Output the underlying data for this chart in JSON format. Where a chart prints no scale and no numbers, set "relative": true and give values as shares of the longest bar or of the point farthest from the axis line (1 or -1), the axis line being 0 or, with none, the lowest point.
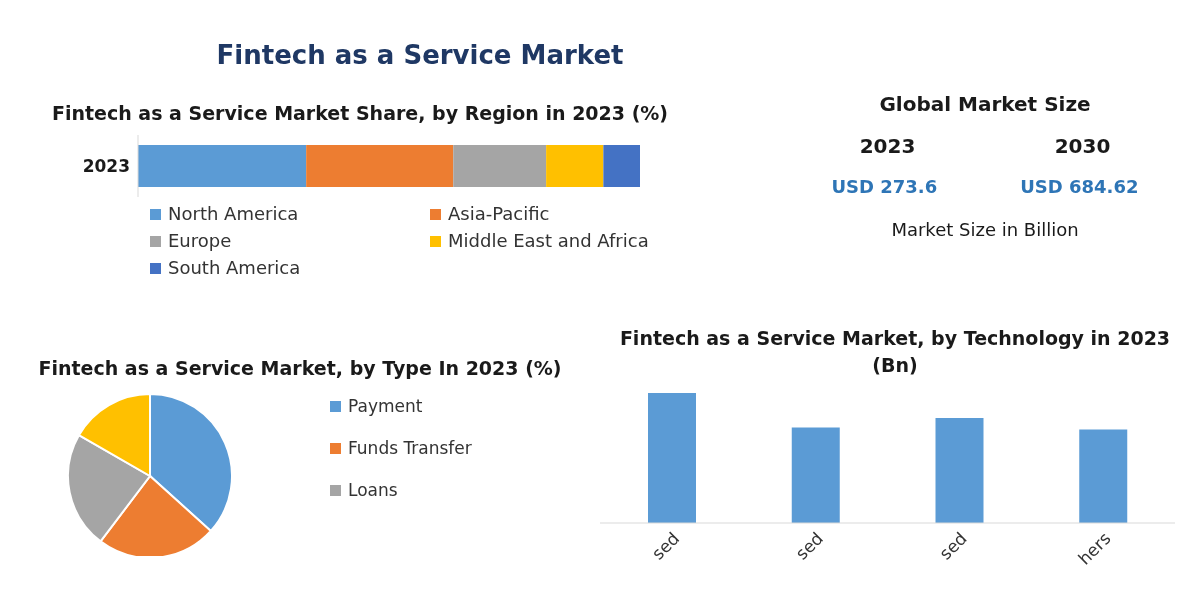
{
  "chart_data": [
    {
      "type": "other",
      "title": "Fintech as a Service Market"
    },
    {
      "type": "bar",
      "orientation": "horizontal",
      "stacked": true,
      "relative": true,
      "title": "Fintech as a Service Market Share, by Region in 2023 (%)",
      "categories": [
        "2023"
      ],
      "legend": "bottom",
      "series": [
        {
          "name": "North America",
          "color": "#5b9bd5",
          "values": [
            0.335
          ]
        },
        {
          "name": "Asia-Pacific",
          "color": "#ed7d31",
          "values": [
            0.293
          ]
        },
        {
          "name": "Europe",
          "color": "#a5a5a5",
          "values": [
            0.185
          ]
        },
        {
          "name": "Middle East and Africa",
          "color": "#ffc000",
          "values": [
            0.114
          ]
        },
        {
          "name": "South America",
          "color": "#4472c4",
          "values": [
            0.073
          ]
        }
      ]
    },
    {
      "type": "other",
      "title": "Global Market Size",
      "annotations": [
        "2023",
        "2030",
        "USD 273.6",
        "USD 684.62",
        "Market Size in Billion"
      ]
    },
    {
      "type": "pie",
      "title": "Fintech as a Service Market, by Type In 2023 (%)",
      "legend": "right",
      "categories": [
        "Payment",
        "Funds Transfer",
        "Loans",
        null
      ],
      "values": [
        36.7,
        23.6,
        23.0,
        16.7
      ],
      "colors": [
        "#5b9bd5",
        "#ed7d31",
        "#a5a5a5",
        "#ffc000"
      ]
    },
    {
      "type": "bar",
      "relative": true,
      "title": "Fintech as a Service Market, by Technology in 2023 (Bn)",
      "categories": [
        "sed",
        "sed",
        "sed",
        "hers"
      ],
      "values": [
        1,
        0.734,
        0.808,
        0.72
      ],
      "color": "#5b9bd5"
    }
  ]
}
